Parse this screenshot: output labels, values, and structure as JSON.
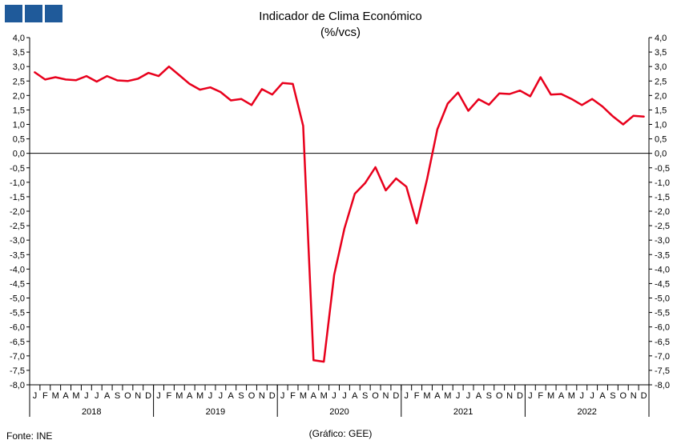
{
  "header": {
    "logo_icon": "ine-logo-squares"
  },
  "footer": {
    "source": "Fonte: INE",
    "credit": "(Gráfico: GEE)"
  },
  "chart_data": {
    "type": "line",
    "title": "Indicador de Clima Económico",
    "subtitle": "(%/vcs)",
    "xlabel": "",
    "ylabel": "",
    "ylim": [
      -8,
      4
    ],
    "y_ticks": [
      "4,0",
      "3,5",
      "3,0",
      "2,5",
      "2,0",
      "1,5",
      "1,0",
      "0,5",
      "0,0",
      "-0,5",
      "-1,0",
      "-1,5",
      "-2,0",
      "-2,5",
      "-3,0",
      "-3,5",
      "-4,0",
      "-4,5",
      "-5,0",
      "-5,5",
      "-6,0",
      "-6,5",
      "-7,0",
      "-7,5",
      "-8,0"
    ],
    "y_axis_right": true,
    "grid": false,
    "legend": "none",
    "line_color": "#e8001c",
    "month_labels": [
      "J",
      "F",
      "M",
      "A",
      "M",
      "J",
      "J",
      "A",
      "S",
      "O",
      "N",
      "D"
    ],
    "years": [
      "2018",
      "2019",
      "2020",
      "2021",
      "2022"
    ],
    "series": [
      {
        "values": [
          2.8,
          2.55,
          2.63,
          2.55,
          2.53,
          2.67,
          2.48,
          2.67,
          2.52,
          2.5,
          2.58,
          2.78,
          2.67,
          3.0,
          2.7,
          2.4,
          2.2,
          2.28,
          2.12,
          1.83,
          1.88,
          1.67,
          2.22,
          2.03,
          2.43,
          2.4,
          0.95,
          -7.15,
          -7.2,
          -4.2,
          -2.6,
          -1.4,
          -1.03,
          -0.48,
          -1.28,
          -0.87,
          -1.15,
          -2.42,
          -0.9,
          0.83,
          1.72,
          2.1,
          1.47,
          1.87,
          1.68,
          2.07,
          2.05,
          2.17,
          1.97,
          2.63,
          2.03,
          2.05,
          1.88,
          1.67,
          1.88,
          1.62,
          1.28,
          1.0,
          1.3,
          1.27
        ]
      }
    ]
  }
}
